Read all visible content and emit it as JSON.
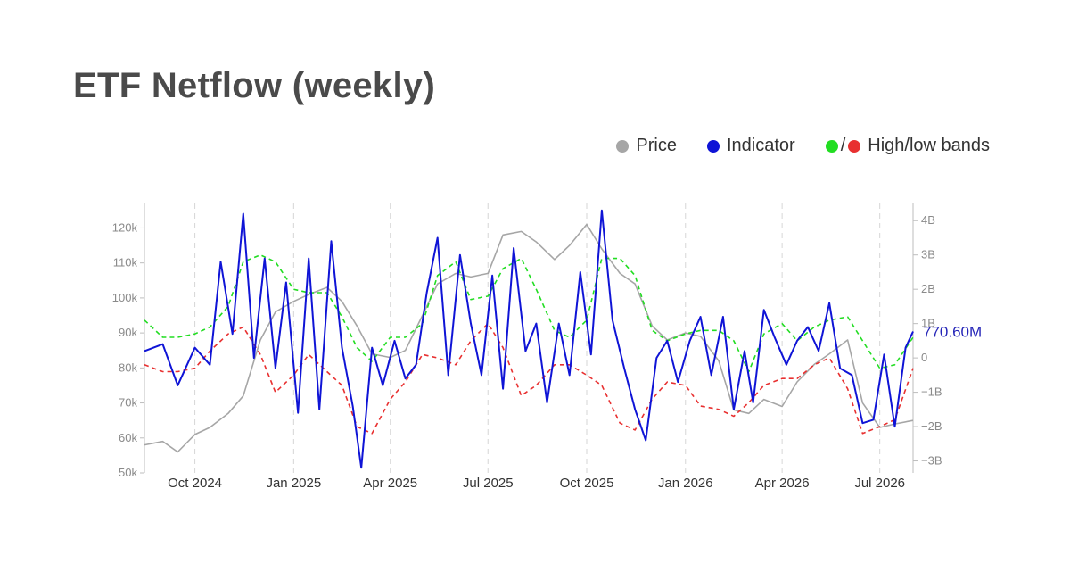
{
  "title": "ETF Netflow (weekly)",
  "legend": [
    {
      "label": "Price",
      "color": "#a6a6a6"
    },
    {
      "label": "Indicator",
      "color": "#0f14d6"
    },
    {
      "label": "High/low bands",
      "color_high": "#22dd22",
      "color_low": "#e83030"
    }
  ],
  "chart_data": {
    "type": "line",
    "x_ticks": [
      "Oct 2024",
      "Jan 2025",
      "Apr 2025",
      "Jul 2025",
      "Oct 2025",
      "Jan 2026",
      "Apr 2026",
      "Jul 2026"
    ],
    "x_tick_dates": [
      "2024-10-01",
      "2025-01-01",
      "2025-04-01",
      "2025-07-01",
      "2025-10-01",
      "2026-01-01",
      "2026-04-01",
      "2026-07-01"
    ],
    "x_range": [
      "2024-08-15",
      "2026-08-01"
    ],
    "y_left": {
      "ticks": [
        "50k",
        "60k",
        "70k",
        "80k",
        "90k",
        "100k",
        "110k",
        "120k"
      ],
      "tick_values": [
        50000,
        60000,
        70000,
        80000,
        90000,
        100000,
        110000,
        120000
      ],
      "range": [
        50000,
        127000
      ]
    },
    "y_right": {
      "ticks": [
        "−3B",
        "−2B",
        "−1B",
        "0",
        "1B",
        "2B",
        "3B",
        "4B"
      ],
      "tick_values": [
        -3,
        -2,
        -1,
        0,
        1,
        2,
        3,
        4
      ],
      "unit": "B",
      "range": [
        -3.35,
        4.5
      ]
    },
    "last_value_label": "770.60M",
    "vertical_grid": true,
    "series": [
      {
        "name": "Price",
        "axis": "left",
        "color": "#a6a6a6",
        "x": [
          "2024-08-15",
          "2024-09-01",
          "2024-09-15",
          "2024-10-01",
          "2024-10-15",
          "2024-11-01",
          "2024-11-15",
          "2024-12-01",
          "2024-12-15",
          "2025-01-01",
          "2025-01-15",
          "2025-02-01",
          "2025-02-15",
          "2025-03-01",
          "2025-03-15",
          "2025-04-01",
          "2025-04-15",
          "2025-05-01",
          "2025-05-15",
          "2025-06-01",
          "2025-06-15",
          "2025-07-01",
          "2025-07-15",
          "2025-08-01",
          "2025-08-15",
          "2025-09-01",
          "2025-09-15",
          "2025-10-01",
          "2025-10-15",
          "2025-11-01",
          "2025-11-15",
          "2025-12-01",
          "2025-12-15",
          "2026-01-01",
          "2026-01-15",
          "2026-02-01",
          "2026-02-15",
          "2026-03-01",
          "2026-03-15",
          "2026-04-01",
          "2026-04-15",
          "2026-05-01",
          "2026-05-15",
          "2026-06-01",
          "2026-06-15",
          "2026-07-01",
          "2026-07-15",
          "2026-08-01"
        ],
        "y": [
          58000,
          59000,
          56000,
          61000,
          63000,
          67000,
          72000,
          88000,
          96000,
          99000,
          101000,
          103000,
          99000,
          92000,
          84000,
          83000,
          85000,
          95000,
          104000,
          107000,
          106000,
          107000,
          118000,
          119000,
          116000,
          111000,
          115000,
          121000,
          114000,
          107000,
          104000,
          92000,
          88000,
          90000,
          89000,
          82000,
          68000,
          67000,
          71000,
          69000,
          76000,
          81000,
          84000,
          88000,
          70000,
          63000,
          64000,
          65000
        ]
      },
      {
        "name": "Indicator",
        "axis": "right",
        "color": "#0f14d6",
        "x": [
          "2024-08-15",
          "2024-09-01",
          "2024-09-15",
          "2024-10-01",
          "2024-10-15",
          "2024-10-25",
          "2024-11-05",
          "2024-11-15",
          "2024-11-25",
          "2024-12-05",
          "2024-12-15",
          "2024-12-25",
          "2025-01-05",
          "2025-01-15",
          "2025-01-25",
          "2025-02-05",
          "2025-02-15",
          "2025-02-25",
          "2025-03-05",
          "2025-03-15",
          "2025-03-25",
          "2025-04-05",
          "2025-04-15",
          "2025-04-25",
          "2025-05-05",
          "2025-05-15",
          "2025-05-25",
          "2025-06-05",
          "2025-06-15",
          "2025-06-25",
          "2025-07-05",
          "2025-07-15",
          "2025-07-25",
          "2025-08-05",
          "2025-08-15",
          "2025-08-25",
          "2025-09-05",
          "2025-09-15",
          "2025-09-25",
          "2025-10-05",
          "2025-10-15",
          "2025-10-25",
          "2025-11-05",
          "2025-11-15",
          "2025-11-25",
          "2025-12-05",
          "2025-12-15",
          "2025-12-25",
          "2026-01-05",
          "2026-01-15",
          "2026-01-25",
          "2026-02-05",
          "2026-02-15",
          "2026-02-25",
          "2026-03-05",
          "2026-03-15",
          "2026-03-25",
          "2026-04-05",
          "2026-04-15",
          "2026-04-25",
          "2026-05-05",
          "2026-05-15",
          "2026-05-25",
          "2026-06-05",
          "2026-06-15",
          "2026-06-25",
          "2026-07-05",
          "2026-07-15",
          "2026-07-25",
          "2026-08-01"
        ],
        "y": [
          0.2,
          0.4,
          -0.8,
          0.3,
          -0.2,
          2.8,
          0.7,
          4.2,
          0.0,
          2.9,
          -0.3,
          2.2,
          -1.6,
          2.9,
          -1.5,
          3.4,
          0.3,
          -1.4,
          -3.2,
          0.3,
          -0.8,
          0.5,
          -0.6,
          -0.2,
          1.9,
          3.5,
          -0.5,
          3.0,
          1.0,
          -0.5,
          2.4,
          -0.9,
          3.2,
          0.2,
          1.0,
          -1.3,
          1.0,
          -0.5,
          2.5,
          0.1,
          4.3,
          1.1,
          -0.3,
          -1.5,
          -2.4,
          0.0,
          0.5,
          -0.7,
          0.5,
          1.2,
          -0.5,
          1.2,
          -1.5,
          0.2,
          -1.3,
          1.4,
          0.6,
          -0.2,
          0.5,
          0.9,
          0.2,
          1.6,
          -0.3,
          -0.5,
          -1.9,
          -1.8,
          0.1,
          -2.0,
          0.3,
          0.7706
        ]
      },
      {
        "name": "High band",
        "axis": "right",
        "color": "#22dd22",
        "x": [
          "2024-08-15",
          "2024-09-01",
          "2024-09-15",
          "2024-10-01",
          "2024-10-15",
          "2024-11-01",
          "2024-11-15",
          "2024-12-01",
          "2024-12-15",
          "2025-01-01",
          "2025-01-15",
          "2025-02-01",
          "2025-02-15",
          "2025-03-01",
          "2025-03-15",
          "2025-04-01",
          "2025-04-15",
          "2025-05-01",
          "2025-05-15",
          "2025-06-01",
          "2025-06-15",
          "2025-07-01",
          "2025-07-15",
          "2025-08-01",
          "2025-08-15",
          "2025-09-01",
          "2025-09-15",
          "2025-10-01",
          "2025-10-15",
          "2025-11-01",
          "2025-11-15",
          "2025-12-01",
          "2025-12-15",
          "2026-01-01",
          "2026-01-15",
          "2026-02-01",
          "2026-02-15",
          "2026-03-01",
          "2026-03-15",
          "2026-04-01",
          "2026-04-15",
          "2026-05-01",
          "2026-05-15",
          "2026-06-01",
          "2026-06-15",
          "2026-07-01",
          "2026-07-15",
          "2026-08-01"
        ],
        "y": [
          1.1,
          0.6,
          0.6,
          0.7,
          0.9,
          1.5,
          2.8,
          3.0,
          2.8,
          2.0,
          1.9,
          1.9,
          1.2,
          0.3,
          -0.1,
          0.6,
          0.6,
          1.0,
          2.4,
          2.8,
          1.7,
          1.8,
          2.6,
          2.9,
          2.0,
          0.8,
          0.6,
          1.1,
          2.9,
          2.9,
          2.4,
          0.8,
          0.5,
          0.7,
          0.8,
          0.8,
          0.5,
          -0.4,
          0.7,
          1.0,
          0.5,
          0.9,
          1.1,
          1.2,
          0.5,
          -0.3,
          -0.2,
          0.6
        ]
      },
      {
        "name": "Low band",
        "axis": "right",
        "color": "#e83030",
        "x": [
          "2024-08-15",
          "2024-09-01",
          "2024-09-15",
          "2024-10-01",
          "2024-10-15",
          "2024-11-01",
          "2024-11-15",
          "2024-12-01",
          "2024-12-15",
          "2025-01-01",
          "2025-01-15",
          "2025-02-01",
          "2025-02-15",
          "2025-03-01",
          "2025-03-15",
          "2025-04-01",
          "2025-04-15",
          "2025-05-01",
          "2025-05-15",
          "2025-06-01",
          "2025-06-15",
          "2025-07-01",
          "2025-07-15",
          "2025-08-01",
          "2025-08-15",
          "2025-09-01",
          "2025-09-15",
          "2025-10-01",
          "2025-10-15",
          "2025-11-01",
          "2025-11-15",
          "2025-12-01",
          "2025-12-15",
          "2026-01-01",
          "2026-01-15",
          "2026-02-01",
          "2026-02-15",
          "2026-03-01",
          "2026-03-15",
          "2026-04-01",
          "2026-04-15",
          "2026-05-01",
          "2026-05-15",
          "2026-06-01",
          "2026-06-15",
          "2026-07-01",
          "2026-07-15",
          "2026-08-01"
        ],
        "y": [
          -0.2,
          -0.4,
          -0.4,
          -0.3,
          0.2,
          0.7,
          0.9,
          0.1,
          -1.0,
          -0.5,
          0.1,
          -0.4,
          -0.8,
          -2.0,
          -2.2,
          -1.2,
          -0.7,
          0.1,
          0.0,
          -0.2,
          0.5,
          1.0,
          0.3,
          -1.1,
          -0.8,
          -0.2,
          -0.2,
          -0.5,
          -0.8,
          -1.9,
          -2.1,
          -1.2,
          -0.7,
          -0.8,
          -1.4,
          -1.5,
          -1.7,
          -1.3,
          -0.8,
          -0.6,
          -0.6,
          -0.2,
          0.0,
          -0.9,
          -2.2,
          -2.0,
          -1.8,
          -0.3
        ]
      }
    ]
  }
}
